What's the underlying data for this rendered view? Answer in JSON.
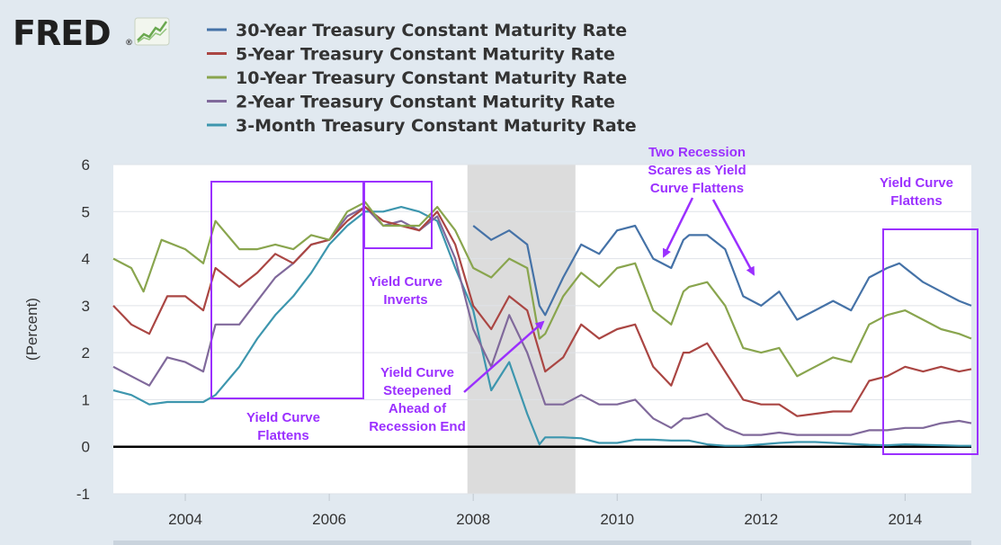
{
  "logo": {
    "text": "FRED",
    "registered": "®"
  },
  "colors": {
    "thirty_year": "#4572a7",
    "five_year": "#aa4643",
    "ten_year": "#89a54e",
    "two_year": "#80699b",
    "three_month": "#3d96ae",
    "annotation": "#9b30ff",
    "recession": "#dcdcdc",
    "zero_line": "#000000"
  },
  "chart_data": {
    "type": "line",
    "title": "",
    "xlabel": "",
    "ylabel": "(Percent)",
    "xlim": [
      2003.0,
      2014.92
    ],
    "ylim": [
      -1,
      6
    ],
    "y_ticks": [
      "6",
      "5",
      "4",
      "3",
      "2",
      "1",
      "0",
      "-1"
    ],
    "x_ticks": [
      "2004",
      "2006",
      "2008",
      "2010",
      "2012",
      "2014"
    ],
    "recession_shading": [
      2007.92,
      2009.42
    ],
    "series": [
      {
        "name": "30-Year Treasury Constant Maturity Rate",
        "color_key": "thirty_year",
        "points": [
          [
            2008.0,
            4.7
          ],
          [
            2008.25,
            4.4
          ],
          [
            2008.5,
            4.6
          ],
          [
            2008.75,
            4.3
          ],
          [
            2008.92,
            3.0
          ],
          [
            2009.0,
            2.8
          ],
          [
            2009.25,
            3.6
          ],
          [
            2009.5,
            4.3
          ],
          [
            2009.75,
            4.1
          ],
          [
            2010.0,
            4.6
          ],
          [
            2010.25,
            4.7
          ],
          [
            2010.5,
            4.0
          ],
          [
            2010.75,
            3.8
          ],
          [
            2010.92,
            4.4
          ],
          [
            2011.0,
            4.5
          ],
          [
            2011.25,
            4.5
          ],
          [
            2011.5,
            4.2
          ],
          [
            2011.75,
            3.2
          ],
          [
            2012.0,
            3.0
          ],
          [
            2012.25,
            3.3
          ],
          [
            2012.5,
            2.7
          ],
          [
            2012.75,
            2.9
          ],
          [
            2013.0,
            3.1
          ],
          [
            2013.25,
            2.9
          ],
          [
            2013.5,
            3.6
          ],
          [
            2013.75,
            3.8
          ],
          [
            2013.92,
            3.9
          ],
          [
            2014.0,
            3.8
          ],
          [
            2014.25,
            3.5
          ],
          [
            2014.5,
            3.3
          ],
          [
            2014.75,
            3.1
          ],
          [
            2014.92,
            3.0
          ]
        ]
      },
      {
        "name": "5-Year Treasury Constant Maturity Rate",
        "color_key": "five_year",
        "points": [
          [
            2003.0,
            3.0
          ],
          [
            2003.25,
            2.6
          ],
          [
            2003.5,
            2.4
          ],
          [
            2003.75,
            3.2
          ],
          [
            2004.0,
            3.2
          ],
          [
            2004.25,
            2.9
          ],
          [
            2004.42,
            3.8
          ],
          [
            2004.75,
            3.4
          ],
          [
            2005.0,
            3.7
          ],
          [
            2005.25,
            4.1
          ],
          [
            2005.5,
            3.9
          ],
          [
            2005.75,
            4.3
          ],
          [
            2006.0,
            4.4
          ],
          [
            2006.25,
            4.8
          ],
          [
            2006.5,
            5.1
          ],
          [
            2006.75,
            4.8
          ],
          [
            2007.0,
            4.7
          ],
          [
            2007.25,
            4.6
          ],
          [
            2007.5,
            5.0
          ],
          [
            2007.75,
            4.3
          ],
          [
            2008.0,
            3.0
          ],
          [
            2008.25,
            2.5
          ],
          [
            2008.5,
            3.2
          ],
          [
            2008.75,
            2.9
          ],
          [
            2009.0,
            1.6
          ],
          [
            2009.25,
            1.9
          ],
          [
            2009.5,
            2.6
          ],
          [
            2009.75,
            2.3
          ],
          [
            2010.0,
            2.5
          ],
          [
            2010.25,
            2.6
          ],
          [
            2010.5,
            1.7
          ],
          [
            2010.75,
            1.3
          ],
          [
            2010.92,
            2.0
          ],
          [
            2011.0,
            2.0
          ],
          [
            2011.25,
            2.2
          ],
          [
            2011.5,
            1.6
          ],
          [
            2011.75,
            1.0
          ],
          [
            2012.0,
            0.9
          ],
          [
            2012.25,
            0.9
          ],
          [
            2012.5,
            0.65
          ],
          [
            2012.75,
            0.7
          ],
          [
            2013.0,
            0.75
          ],
          [
            2013.25,
            0.75
          ],
          [
            2013.5,
            1.4
          ],
          [
            2013.75,
            1.5
          ],
          [
            2014.0,
            1.7
          ],
          [
            2014.25,
            1.6
          ],
          [
            2014.5,
            1.7
          ],
          [
            2014.75,
            1.6
          ],
          [
            2014.92,
            1.65
          ]
        ]
      },
      {
        "name": "10-Year Treasury Constant Maturity Rate",
        "color_key": "ten_year",
        "points": [
          [
            2003.0,
            4.0
          ],
          [
            2003.25,
            3.8
          ],
          [
            2003.42,
            3.3
          ],
          [
            2003.67,
            4.4
          ],
          [
            2004.0,
            4.2
          ],
          [
            2004.25,
            3.9
          ],
          [
            2004.42,
            4.8
          ],
          [
            2004.75,
            4.2
          ],
          [
            2005.0,
            4.2
          ],
          [
            2005.25,
            4.3
          ],
          [
            2005.5,
            4.2
          ],
          [
            2005.75,
            4.5
          ],
          [
            2006.0,
            4.4
          ],
          [
            2006.25,
            5.0
          ],
          [
            2006.5,
            5.2
          ],
          [
            2006.75,
            4.7
          ],
          [
            2007.0,
            4.7
          ],
          [
            2007.25,
            4.7
          ],
          [
            2007.5,
            5.1
          ],
          [
            2007.75,
            4.6
          ],
          [
            2008.0,
            3.8
          ],
          [
            2008.25,
            3.6
          ],
          [
            2008.5,
            4.0
          ],
          [
            2008.75,
            3.8
          ],
          [
            2008.92,
            2.3
          ],
          [
            2009.0,
            2.4
          ],
          [
            2009.25,
            3.2
          ],
          [
            2009.5,
            3.7
          ],
          [
            2009.75,
            3.4
          ],
          [
            2010.0,
            3.8
          ],
          [
            2010.25,
            3.9
          ],
          [
            2010.5,
            2.9
          ],
          [
            2010.75,
            2.6
          ],
          [
            2010.92,
            3.3
          ],
          [
            2011.0,
            3.4
          ],
          [
            2011.25,
            3.5
          ],
          [
            2011.5,
            3.0
          ],
          [
            2011.75,
            2.1
          ],
          [
            2012.0,
            2.0
          ],
          [
            2012.25,
            2.1
          ],
          [
            2012.5,
            1.5
          ],
          [
            2012.75,
            1.7
          ],
          [
            2013.0,
            1.9
          ],
          [
            2013.25,
            1.8
          ],
          [
            2013.5,
            2.6
          ],
          [
            2013.75,
            2.8
          ],
          [
            2014.0,
            2.9
          ],
          [
            2014.25,
            2.7
          ],
          [
            2014.5,
            2.5
          ],
          [
            2014.75,
            2.4
          ],
          [
            2014.92,
            2.3
          ]
        ]
      },
      {
        "name": "2-Year Treasury Constant Maturity Rate",
        "color_key": "two_year",
        "points": [
          [
            2003.0,
            1.7
          ],
          [
            2003.25,
            1.5
          ],
          [
            2003.5,
            1.3
          ],
          [
            2003.75,
            1.9
          ],
          [
            2004.0,
            1.8
          ],
          [
            2004.25,
            1.6
          ],
          [
            2004.42,
            2.6
          ],
          [
            2004.75,
            2.6
          ],
          [
            2005.0,
            3.1
          ],
          [
            2005.25,
            3.6
          ],
          [
            2005.5,
            3.9
          ],
          [
            2005.75,
            4.3
          ],
          [
            2006.0,
            4.4
          ],
          [
            2006.25,
            4.9
          ],
          [
            2006.5,
            5.1
          ],
          [
            2006.75,
            4.7
          ],
          [
            2007.0,
            4.8
          ],
          [
            2007.25,
            4.6
          ],
          [
            2007.5,
            4.9
          ],
          [
            2007.75,
            4.0
          ],
          [
            2008.0,
            2.5
          ],
          [
            2008.25,
            1.7
          ],
          [
            2008.5,
            2.8
          ],
          [
            2008.75,
            2.0
          ],
          [
            2009.0,
            0.9
          ],
          [
            2009.25,
            0.9
          ],
          [
            2009.5,
            1.1
          ],
          [
            2009.75,
            0.9
          ],
          [
            2010.0,
            0.9
          ],
          [
            2010.25,
            1.0
          ],
          [
            2010.5,
            0.6
          ],
          [
            2010.75,
            0.4
          ],
          [
            2010.92,
            0.6
          ],
          [
            2011.0,
            0.6
          ],
          [
            2011.25,
            0.7
          ],
          [
            2011.5,
            0.4
          ],
          [
            2011.75,
            0.25
          ],
          [
            2012.0,
            0.25
          ],
          [
            2012.25,
            0.3
          ],
          [
            2012.5,
            0.25
          ],
          [
            2012.75,
            0.25
          ],
          [
            2013.0,
            0.25
          ],
          [
            2013.25,
            0.25
          ],
          [
            2013.5,
            0.35
          ],
          [
            2013.75,
            0.35
          ],
          [
            2014.0,
            0.4
          ],
          [
            2014.25,
            0.4
          ],
          [
            2014.5,
            0.5
          ],
          [
            2014.75,
            0.55
          ],
          [
            2014.92,
            0.5
          ]
        ]
      },
      {
        "name": "3-Month Treasury Constant Maturity Rate",
        "color_key": "three_month",
        "points": [
          [
            2003.0,
            1.2
          ],
          [
            2003.25,
            1.1
          ],
          [
            2003.5,
            0.9
          ],
          [
            2003.75,
            0.95
          ],
          [
            2004.0,
            0.95
          ],
          [
            2004.25,
            0.95
          ],
          [
            2004.42,
            1.1
          ],
          [
            2004.75,
            1.7
          ],
          [
            2005.0,
            2.3
          ],
          [
            2005.25,
            2.8
          ],
          [
            2005.5,
            3.2
          ],
          [
            2005.75,
            3.7
          ],
          [
            2006.0,
            4.3
          ],
          [
            2006.25,
            4.7
          ],
          [
            2006.5,
            5.0
          ],
          [
            2006.75,
            5.0
          ],
          [
            2007.0,
            5.1
          ],
          [
            2007.25,
            5.0
          ],
          [
            2007.5,
            4.8
          ],
          [
            2007.75,
            3.8
          ],
          [
            2008.0,
            2.9
          ],
          [
            2008.25,
            1.2
          ],
          [
            2008.5,
            1.8
          ],
          [
            2008.75,
            0.7
          ],
          [
            2008.92,
            0.05
          ],
          [
            2009.0,
            0.2
          ],
          [
            2009.25,
            0.2
          ],
          [
            2009.5,
            0.18
          ],
          [
            2009.75,
            0.08
          ],
          [
            2010.0,
            0.08
          ],
          [
            2010.25,
            0.15
          ],
          [
            2010.5,
            0.15
          ],
          [
            2010.75,
            0.13
          ],
          [
            2011.0,
            0.13
          ],
          [
            2011.25,
            0.05
          ],
          [
            2011.5,
            0.02
          ],
          [
            2011.75,
            0.02
          ],
          [
            2012.0,
            0.05
          ],
          [
            2012.25,
            0.08
          ],
          [
            2012.5,
            0.1
          ],
          [
            2012.75,
            0.1
          ],
          [
            2013.0,
            0.08
          ],
          [
            2013.25,
            0.06
          ],
          [
            2013.5,
            0.04
          ],
          [
            2013.75,
            0.03
          ],
          [
            2014.0,
            0.05
          ],
          [
            2014.25,
            0.04
          ],
          [
            2014.5,
            0.03
          ],
          [
            2014.75,
            0.02
          ],
          [
            2014.92,
            0.02
          ]
        ]
      }
    ],
    "annotations": {
      "flattens_left": [
        "Yield Curve",
        "Flattens"
      ],
      "inverts": [
        "Yield Curve",
        "Inverts"
      ],
      "steepened": [
        "Yield Curve",
        "Steepened",
        "Ahead of",
        "Recession End"
      ],
      "recession_scares": [
        "Two Recession",
        "Scares as Yield",
        "Curve Flattens"
      ],
      "flattens_right": [
        "Yield Curve",
        "Flattens"
      ]
    }
  }
}
